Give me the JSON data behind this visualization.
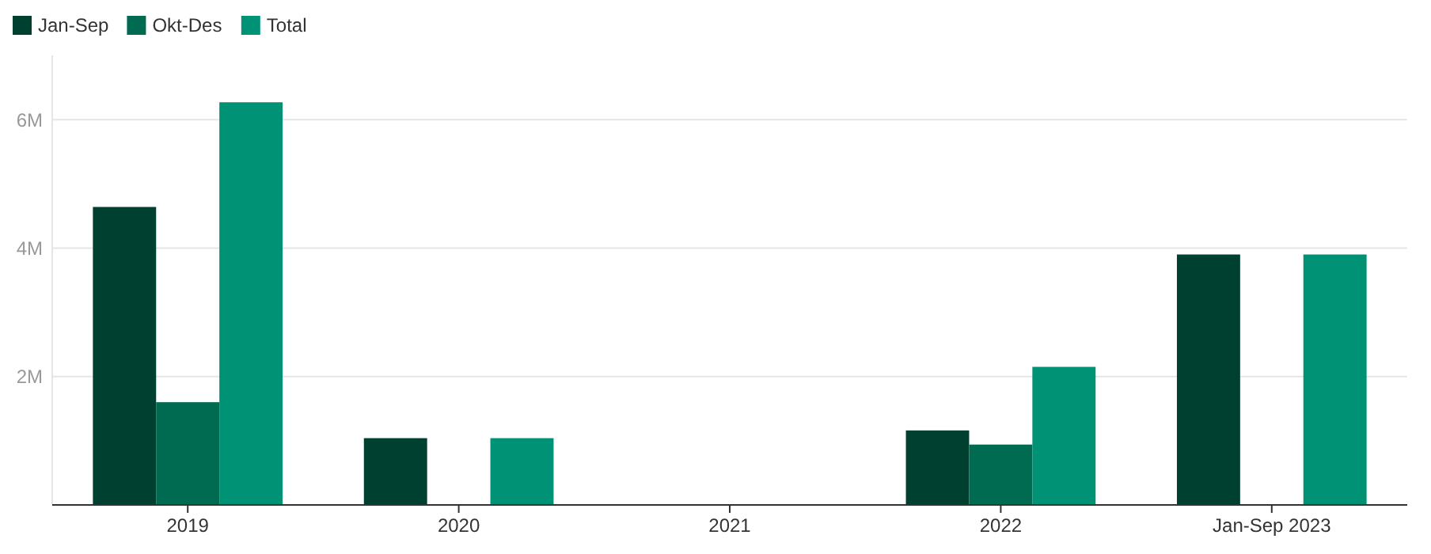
{
  "chart_data": {
    "type": "bar",
    "categories": [
      "2019",
      "2020",
      "2021",
      "2022",
      "Jan-Sep 2023"
    ],
    "series": [
      {
        "name": "Jan-Sep",
        "color": "#004030",
        "values": [
          4640000,
          1040000,
          null,
          1160000,
          3900000
        ]
      },
      {
        "name": "Okt-Des",
        "color": "#006b50",
        "values": [
          1600000,
          null,
          null,
          940000,
          null
        ]
      },
      {
        "name": "Total",
        "color": "#009275",
        "values": [
          6270000,
          1040000,
          null,
          2150000,
          3900000
        ]
      }
    ],
    "ylim": [
      0,
      7000000
    ],
    "yticks": [
      {
        "value": 0,
        "label": null
      },
      {
        "value": 2000000,
        "label": "2M"
      },
      {
        "value": 4000000,
        "label": "4M"
      },
      {
        "value": 6000000,
        "label": "6M"
      }
    ],
    "grid": "y",
    "legend": "top left"
  }
}
